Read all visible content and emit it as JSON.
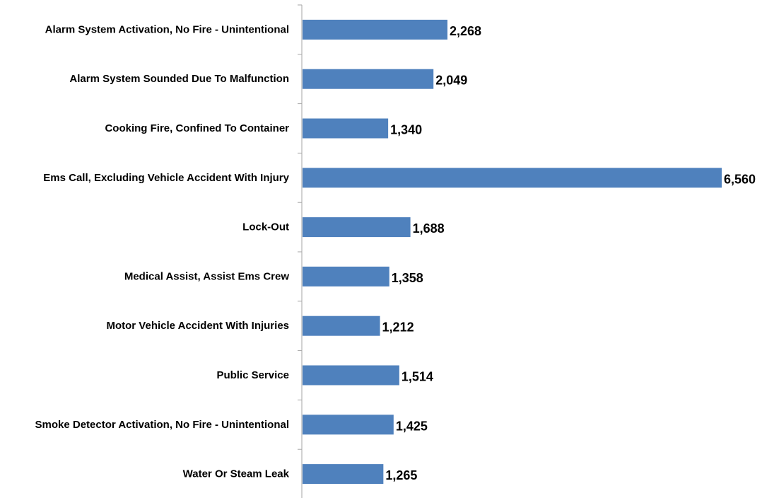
{
  "chart_data": {
    "type": "bar",
    "orientation": "horizontal",
    "categories": [
      "Alarm System Activation, No Fire - Unintentional",
      "Alarm System Sounded Due To Malfunction",
      "Cooking Fire, Confined To Container",
      "Ems Call, Excluding Vehicle Accident With Injury",
      "Lock-Out",
      "Medical Assist, Assist Ems Crew",
      "Motor Vehicle Accident With Injuries",
      "Public Service",
      "Smoke Detector Activation, No Fire - Unintentional",
      "Water Or Steam Leak"
    ],
    "values": [
      2268,
      2049,
      1340,
      6560,
      1688,
      1358,
      1212,
      1514,
      1425,
      1265
    ],
    "value_labels": [
      "2,268",
      "2,049",
      "1,340",
      "6,560",
      "1,688",
      "1,358",
      "1,212",
      "1,514",
      "1,425",
      "1,265"
    ],
    "xlim": [
      0,
      6560
    ],
    "grid": false,
    "legend": "none",
    "bar_color": "#4F81BD",
    "axis_color": "#A6A6A6"
  }
}
